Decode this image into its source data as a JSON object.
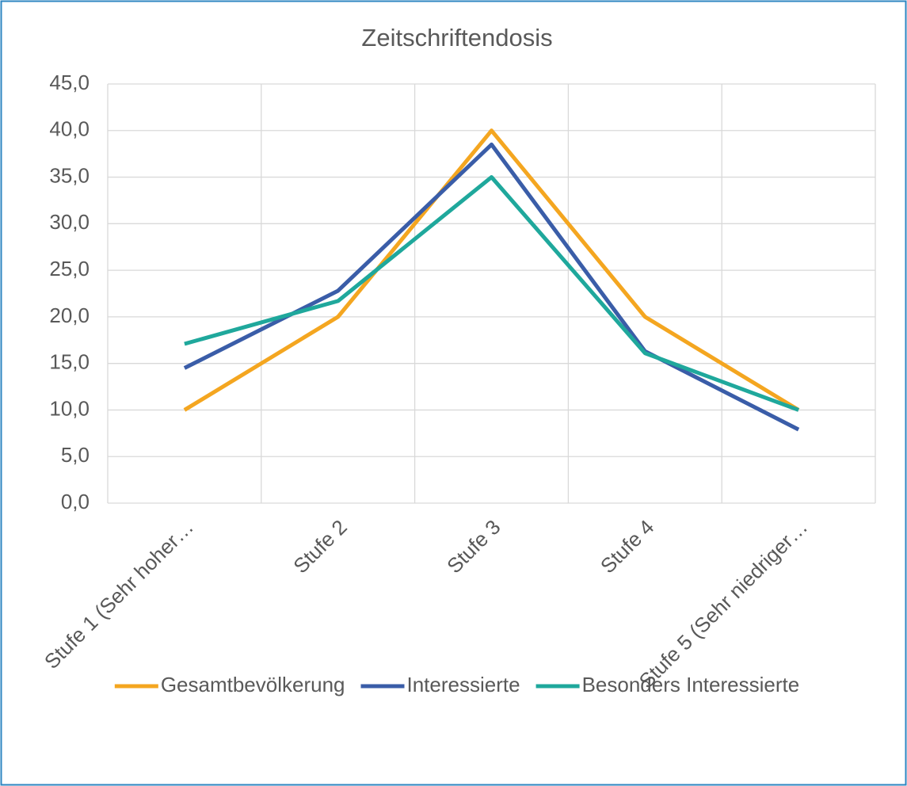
{
  "chart_data": {
    "type": "line",
    "title": "Zeitschriftendosis",
    "categories": [
      "Stufe 1 (Sehr hoher…",
      "Stufe 2",
      "Stufe 3",
      "Stufe 4",
      "Stufe 5 (Sehr niedriger…"
    ],
    "series": [
      {
        "name": "Gesamtbevölkerung",
        "color": "#f4a620",
        "values": [
          10,
          20,
          40,
          20,
          10
        ]
      },
      {
        "name": "Interessierte",
        "color": "#3a5da8",
        "values": [
          14.5,
          22.8,
          38.5,
          16.3,
          7.9
        ]
      },
      {
        "name": "Besonders Interessierte",
        "color": "#1fa89c",
        "values": [
          17.1,
          21.7,
          35,
          16.1,
          10
        ]
      }
    ],
    "ylim": [
      0,
      45
    ],
    "yticks": [
      {
        "value": 0,
        "label": "0,0"
      },
      {
        "value": 5,
        "label": "5,0"
      },
      {
        "value": 10,
        "label": "10,0"
      },
      {
        "value": 15,
        "label": "15,0"
      },
      {
        "value": 20,
        "label": "20,0"
      },
      {
        "value": 25,
        "label": "25,0"
      },
      {
        "value": 30,
        "label": "30,0"
      },
      {
        "value": 35,
        "label": "35,0"
      },
      {
        "value": 40,
        "label": "40,0"
      },
      {
        "value": 45,
        "label": "45,0"
      }
    ],
    "grid": true,
    "legend": "bottom"
  }
}
